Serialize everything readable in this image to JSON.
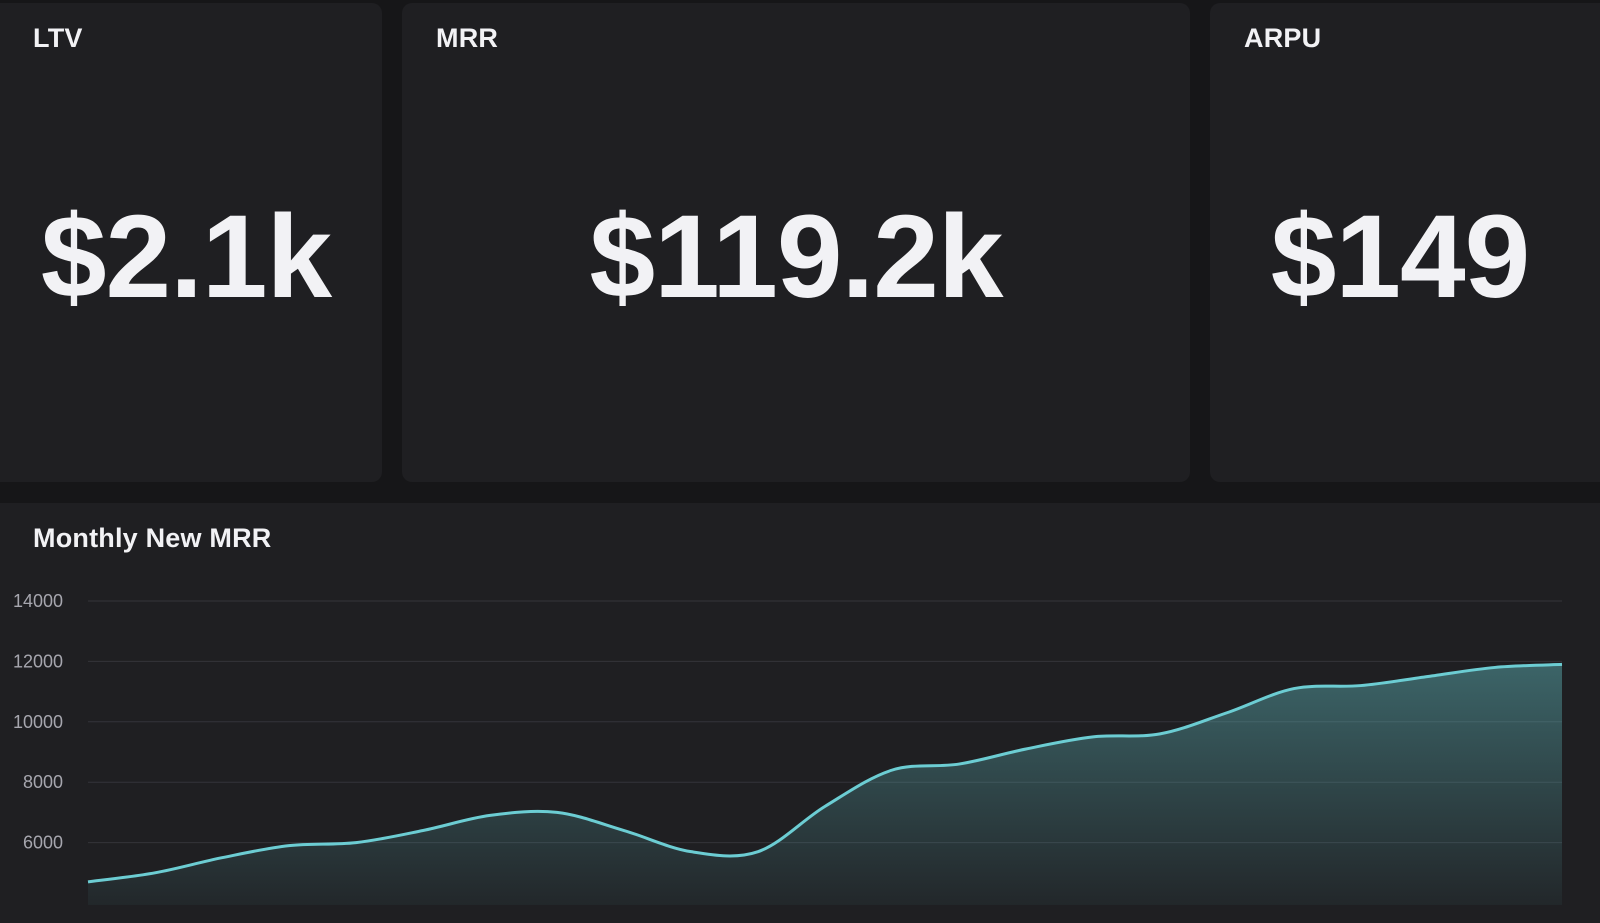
{
  "cards": {
    "ltv": {
      "title": "LTV",
      "value": "$2.1k"
    },
    "mrr": {
      "title": "MRR",
      "value": "$119.2k"
    },
    "arpu": {
      "title": "ARPU",
      "value": "$149"
    }
  },
  "chart": {
    "title": "Monthly New MRR"
  },
  "chart_data": {
    "type": "area",
    "title": "Monthly New MRR",
    "xlabel": "",
    "ylabel": "",
    "y_ticks": [
      6000,
      8000,
      10000,
      12000,
      14000
    ],
    "x": [
      0,
      1,
      2,
      3,
      4,
      5,
      6,
      7,
      8,
      9,
      10,
      11,
      12,
      13,
      14,
      15
    ],
    "series": [
      {
        "values": [
          4700,
          5000,
          5500,
          5900,
          6000,
          6400,
          6900,
          7000,
          6400,
          5700,
          5700,
          7200,
          8400,
          8600,
          9100,
          9500
        ]
      }
    ],
    "extra_tail_values": [
      9600,
      10300,
      11100,
      11200,
      11500,
      11800,
      11900
    ],
    "ylim": [
      4000,
      14000
    ],
    "grid": true,
    "line_color": "#6ccdd3"
  }
}
